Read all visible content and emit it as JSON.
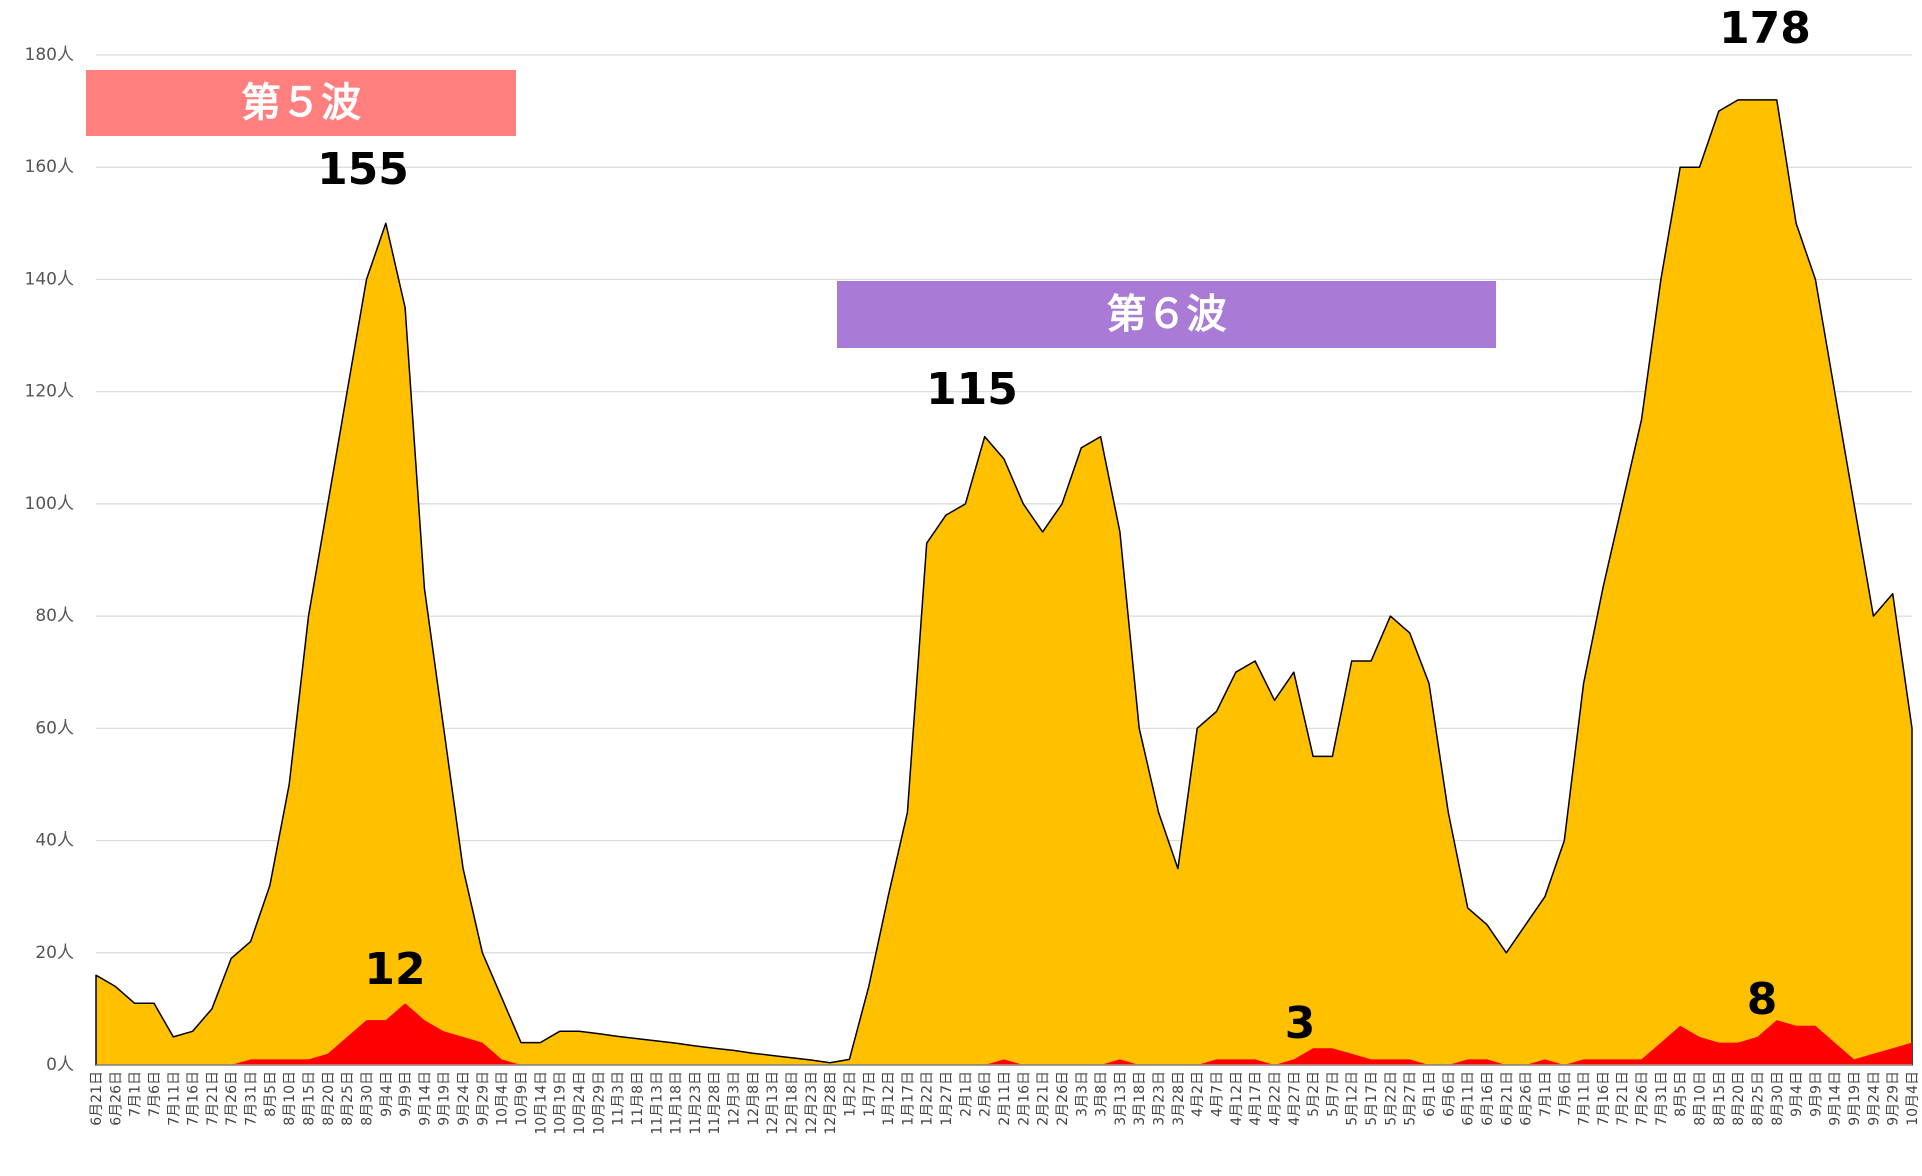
{
  "chart_data": {
    "type": "area",
    "categories": [
      "6月21日",
      "6月26日",
      "7月1日",
      "7月6日",
      "7月11日",
      "7月16日",
      "7月21日",
      "7月26日",
      "7月31日",
      "8月5日",
      "8月10日",
      "8月15日",
      "8月20日",
      "8月25日",
      "8月30日",
      "9月4日",
      "9月9日",
      "9月14日",
      "9月19日",
      "9月24日",
      "9月29日",
      "10月4日",
      "10月9日",
      "10月14日",
      "10月19日",
      "10月24日",
      "10月29日",
      "11月3日",
      "11月8日",
      "11月13日",
      "11月18日",
      "11月23日",
      "11月28日",
      "12月3日",
      "12月8日",
      "12月13日",
      "12月18日",
      "12月23日",
      "12月28日",
      "1月2日",
      "1月7日",
      "1月12日",
      "1月17日",
      "1月22日",
      "1月27日",
      "2月1日",
      "2月6日",
      "2月11日",
      "2月16日",
      "2月21日",
      "2月26日",
      "3月3日",
      "3月8日",
      "3月13日",
      "3月18日",
      "3月23日",
      "3月28日",
      "4月2日",
      "4月7日",
      "4月12日",
      "4月17日",
      "4月22日",
      "4月27日",
      "5月2日",
      "5月7日",
      "5月12日",
      "5月17日",
      "5月22日",
      "5月27日",
      "6月1日",
      "6月6日",
      "6月11日",
      "6月16日",
      "6月21日",
      "6月26日",
      "7月1日",
      "7月6日",
      "7月11日",
      "7月16日",
      "7月21日",
      "7月26日",
      "7月31日",
      "8月5日",
      "8月10日",
      "8月15日",
      "8月20日",
      "8月25日",
      "8月30日",
      "9月4日",
      "9月9日",
      "9月14日",
      "9月19日",
      "9月24日",
      "9月29日",
      "10月4日"
    ],
    "series": [
      {
        "color": "#ffc000",
        "values": [
          16,
          14,
          11,
          11,
          5,
          6,
          10,
          19,
          22,
          32,
          50,
          80,
          100,
          120,
          140,
          150,
          135,
          85,
          60,
          35,
          20,
          12,
          4,
          4,
          6,
          6,
          5.6,
          5.1,
          4.7,
          4.3,
          3.9,
          3.4,
          3,
          2.6,
          2.1,
          1.7,
          1.3,
          0.9,
          0.4,
          1,
          14,
          30,
          45,
          93,
          98,
          100,
          112,
          108,
          100,
          95,
          100,
          110,
          112,
          95,
          60,
          45,
          35,
          60,
          63,
          70,
          72,
          65,
          70,
          55,
          55,
          72,
          72,
          80,
          77,
          68,
          45,
          28,
          25,
          20,
          25,
          30,
          40,
          68,
          85,
          100,
          115,
          140,
          160,
          160,
          170,
          172,
          172,
          172,
          150,
          140,
          120,
          100,
          80,
          84,
          60
        ]
      },
      {
        "color": "#ff0000",
        "values": [
          0,
          0,
          0,
          0,
          0,
          0,
          0,
          0,
          1,
          1,
          1,
          1,
          2,
          5,
          8,
          8,
          11,
          8,
          6,
          5,
          4,
          1,
          0,
          0,
          0,
          0,
          0,
          0,
          0,
          0,
          0,
          0,
          0,
          0,
          0,
          0,
          0,
          0,
          0,
          0,
          0,
          0,
          0,
          0,
          0,
          0,
          0,
          1,
          0,
          0,
          0,
          0,
          0,
          1,
          0,
          0,
          0,
          0,
          1,
          1,
          1,
          0,
          1,
          3,
          3,
          2,
          1,
          1,
          1,
          0,
          0,
          1,
          1,
          0,
          0,
          1,
          0,
          1,
          1,
          1,
          1,
          4,
          7,
          5,
          4,
          4,
          5,
          8,
          7,
          7,
          4,
          1,
          2,
          3,
          4
        ]
      }
    ],
    "ylim": [
      0,
      180
    ],
    "yticks": [
      {
        "value": 0,
        "label": "0人"
      },
      {
        "value": 20,
        "label": "20人"
      },
      {
        "value": 40,
        "label": "40人"
      },
      {
        "value": 60,
        "label": "60人"
      },
      {
        "value": 80,
        "label": "80人"
      },
      {
        "value": 100,
        "label": "100人"
      },
      {
        "value": 120,
        "label": "120人"
      },
      {
        "value": 140,
        "label": "140人"
      },
      {
        "value": 160,
        "label": "160人"
      },
      {
        "value": 180,
        "label": "180人"
      }
    ],
    "grid": true,
    "annotations": [
      "155",
      "12",
      "115",
      "3",
      "178",
      "8"
    ],
    "banners": [
      {
        "text": "第５波",
        "color": "#ff7f7f"
      },
      {
        "text": "第６波",
        "color": "#a97bd6"
      }
    ]
  }
}
